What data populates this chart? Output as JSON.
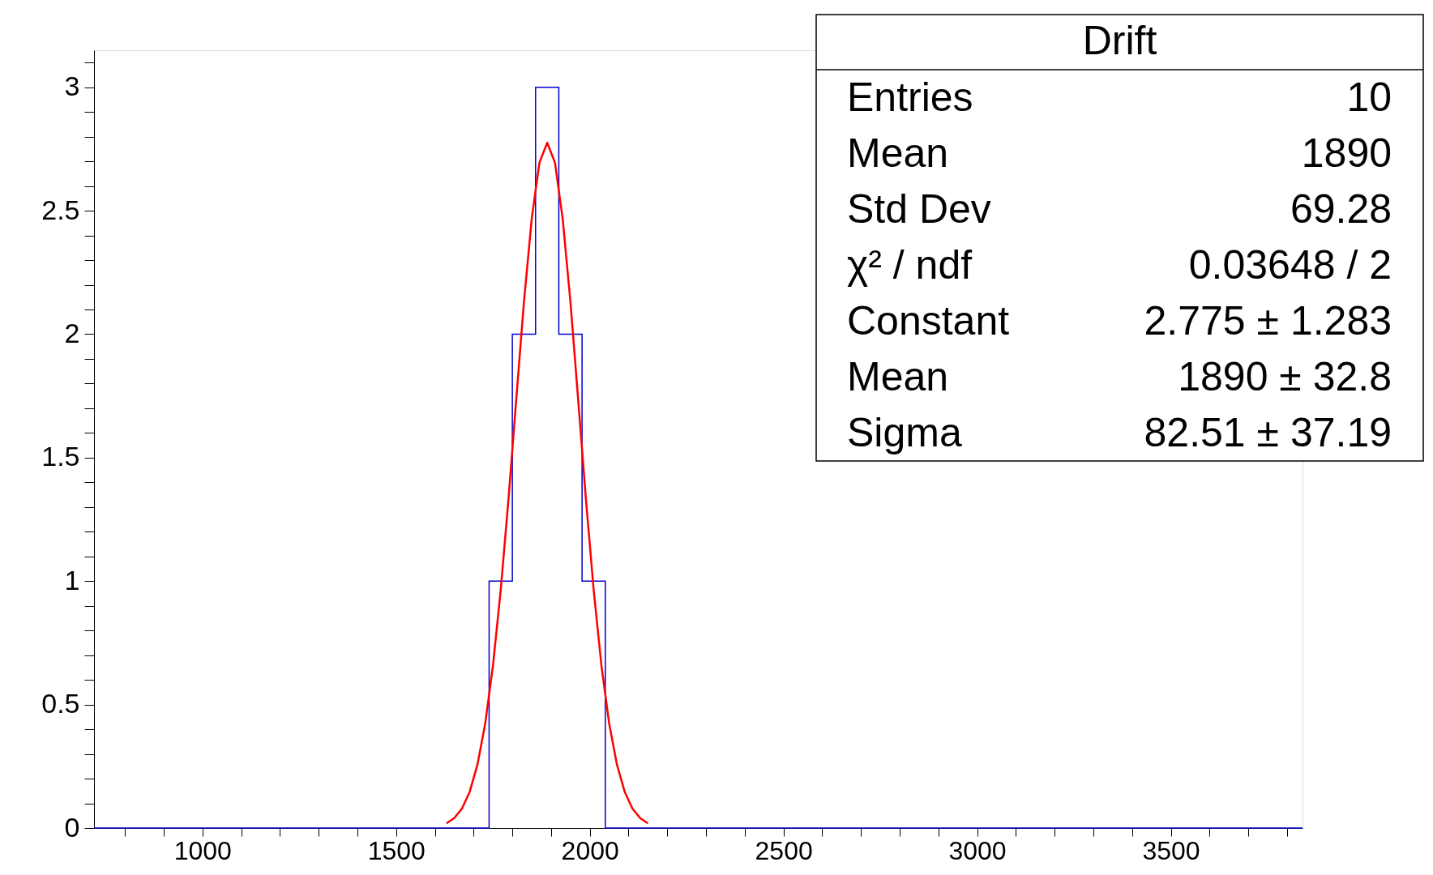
{
  "chart_data": {
    "type": "histogram",
    "title": "Drift",
    "series": [
      {
        "color": "#0000cc",
        "bins": [
          720,
          780,
          840,
          900,
          960,
          1020,
          1080,
          1140,
          1200,
          1260,
          1320,
          1380,
          1440,
          1500,
          1560,
          1620,
          1680,
          1740,
          1800,
          1860,
          1920,
          1980,
          2040,
          2100,
          2160,
          2220,
          2280,
          2340,
          2400,
          2460,
          2520,
          2580,
          2640,
          2700,
          2760,
          2820,
          2880,
          2940,
          3000,
          3060,
          3120,
          3180,
          3240,
          3300,
          3360,
          3420,
          3480,
          3540,
          3600,
          3660,
          3720,
          3780,
          3840
        ],
        "values": [
          0,
          0,
          0,
          0,
          0,
          0,
          0,
          0,
          0,
          0,
          0,
          0,
          0,
          0,
          0,
          0,
          0,
          1,
          2,
          3,
          2,
          1,
          0,
          0,
          0,
          0,
          0,
          0,
          0,
          0,
          0,
          0,
          0,
          0,
          0,
          0,
          0,
          0,
          0,
          0,
          0,
          0,
          0,
          0,
          0,
          0,
          0,
          0,
          0,
          0,
          0,
          0
        ]
      },
      {
        "type": "line",
        "color": "#ff0000",
        "x": [
          1630,
          1650,
          1670,
          1690,
          1710,
          1730,
          1750,
          1770,
          1790,
          1810,
          1830,
          1850,
          1870,
          1890,
          1910,
          1930,
          1950,
          1970,
          1990,
          2010,
          2030,
          2050,
          2070,
          2090,
          2110,
          2130,
          2150
        ],
        "values": [
          0.019,
          0.04,
          0.079,
          0.147,
          0.257,
          0.423,
          0.658,
          0.964,
          1.331,
          1.734,
          2.131,
          2.467,
          2.695,
          2.775,
          2.695,
          2.467,
          2.131,
          1.734,
          1.331,
          0.964,
          0.658,
          0.423,
          0.257,
          0.147,
          0.079,
          0.04,
          0.019
        ]
      }
    ],
    "xlim": [
      720,
      3840
    ],
    "xticks": [
      {
        "value": 800,
        "label": null
      },
      {
        "value": 900,
        "label": null
      },
      1000,
      {
        "value": 1100,
        "label": null
      },
      {
        "value": 1200,
        "label": null
      },
      {
        "value": 1300,
        "label": null
      },
      {
        "value": 1400,
        "label": null
      },
      1500,
      {
        "value": 1600,
        "label": null
      },
      {
        "value": 1700,
        "label": null
      },
      {
        "value": 1800,
        "label": null
      },
      {
        "value": 1900,
        "label": null
      },
      2000,
      {
        "value": 2100,
        "label": null
      },
      {
        "value": 2200,
        "label": null
      },
      {
        "value": 2300,
        "label": null
      },
      {
        "value": 2400,
        "label": null
      },
      2500,
      {
        "value": 2600,
        "label": null
      },
      {
        "value": 2700,
        "label": null
      },
      {
        "value": 2800,
        "label": null
      },
      {
        "value": 2900,
        "label": null
      },
      3000,
      {
        "value": 3100,
        "label": null
      },
      {
        "value": 3200,
        "label": null
      },
      {
        "value": 3300,
        "label": null
      },
      {
        "value": 3400,
        "label": null
      },
      3500,
      {
        "value": 3600,
        "label": null
      },
      {
        "value": 3700,
        "label": null
      },
      {
        "value": 3800,
        "label": null
      }
    ],
    "ylim": [
      0,
      3.15
    ],
    "yticks": [
      0,
      {
        "value": 0.1,
        "label": null
      },
      {
        "value": 0.2,
        "label": null
      },
      {
        "value": 0.3,
        "label": null
      },
      {
        "value": 0.4,
        "label": null
      },
      0.5,
      {
        "value": 0.6,
        "label": null
      },
      {
        "value": 0.7,
        "label": null
      },
      {
        "value": 0.8,
        "label": null
      },
      {
        "value": 0.9,
        "label": null
      },
      1,
      {
        "value": 1.1,
        "label": null
      },
      {
        "value": 1.2,
        "label": null
      },
      {
        "value": 1.3,
        "label": null
      },
      {
        "value": 1.4,
        "label": null
      },
      1.5,
      {
        "value": 1.6,
        "label": null
      },
      {
        "value": 1.7,
        "label": null
      },
      {
        "value": 1.8,
        "label": null
      },
      {
        "value": 1.9,
        "label": null
      },
      2,
      {
        "value": 2.1,
        "label": null
      },
      {
        "value": 2.2,
        "label": null
      },
      {
        "value": 2.3,
        "label": null
      },
      {
        "value": 2.4,
        "label": null
      },
      2.5,
      {
        "value": 2.6,
        "label": null
      },
      {
        "value": 2.7,
        "label": null
      },
      {
        "value": 2.8,
        "label": null
      },
      {
        "value": 2.9,
        "label": null
      },
      3,
      {
        "value": 3.1,
        "label": null
      }
    ],
    "grid": false,
    "annotations": [
      "Entries",
      "10",
      "Mean",
      "1890",
      "Std Dev",
      "69.28",
      "χ² / ndf",
      "0.03648 / 2",
      "Constant",
      "2.775 ± 1.283",
      "Mean",
      "1890 ± 32.8",
      "Sigma",
      "82.51 ± 37.19"
    ]
  }
}
